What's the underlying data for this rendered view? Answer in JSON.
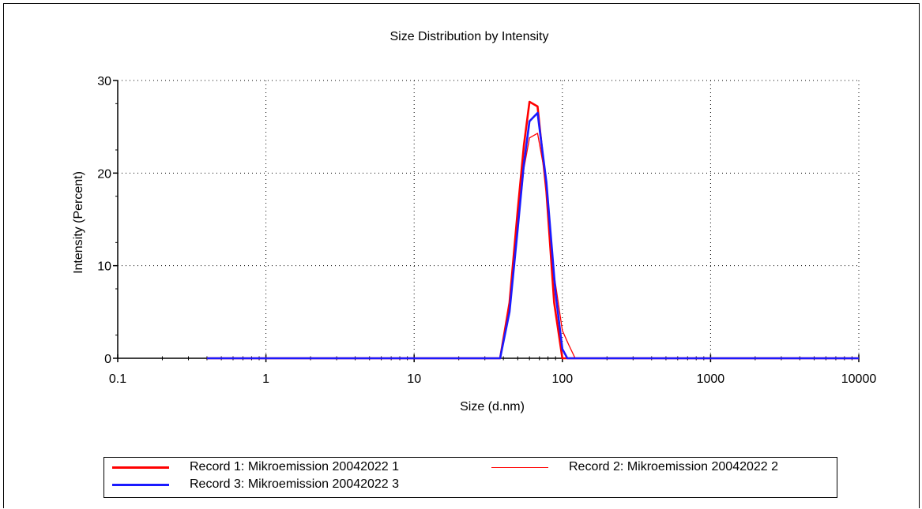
{
  "chart_data": {
    "type": "line",
    "title": "Size Distribution by Intensity",
    "xlabel": "Size (d.nm)",
    "ylabel": "Intensity (Percent)",
    "x_scale": "log",
    "xlim": [
      0.1,
      10000
    ],
    "ylim": [
      0,
      30
    ],
    "x_ticks": [
      "0.1",
      "1",
      "10",
      "100",
      "1000",
      "10000"
    ],
    "y_ticks": [
      "0",
      "10",
      "20",
      "30"
    ],
    "grid": true,
    "legend_position": "bottom",
    "series": [
      {
        "name": "Record 1: Mikroemission 20042022 1",
        "color": "#ff0000",
        "line_style": "thick",
        "points": [
          [
            0.4,
            0
          ],
          [
            38,
            0
          ],
          [
            44,
            6
          ],
          [
            50,
            16
          ],
          [
            55,
            23
          ],
          [
            60,
            27.7
          ],
          [
            68,
            27.2
          ],
          [
            78,
            18
          ],
          [
            88,
            6
          ],
          [
            100,
            0
          ],
          [
            10000,
            0
          ]
        ]
      },
      {
        "name": "Record 2: Mikroemission 20042022 2",
        "color": "#ff0000",
        "line_style": "thin",
        "points": [
          [
            0.4,
            0
          ],
          [
            38,
            0
          ],
          [
            44,
            5.5
          ],
          [
            50,
            14
          ],
          [
            55,
            20.5
          ],
          [
            60,
            23.8
          ],
          [
            68,
            24.3
          ],
          [
            78,
            19
          ],
          [
            88,
            9
          ],
          [
            100,
            3
          ],
          [
            110,
            1.5
          ],
          [
            122,
            0
          ],
          [
            10000,
            0
          ]
        ]
      },
      {
        "name": "Record 3: Mikroemission 20042022 3",
        "color": "#1a1aff",
        "line_style": "thick",
        "points": [
          [
            0.4,
            0
          ],
          [
            38,
            0
          ],
          [
            44,
            5
          ],
          [
            50,
            14
          ],
          [
            55,
            21
          ],
          [
            60,
            25.6
          ],
          [
            68,
            26.5
          ],
          [
            78,
            19
          ],
          [
            90,
            7
          ],
          [
            100,
            1
          ],
          [
            108,
            0
          ],
          [
            10000,
            0
          ]
        ]
      }
    ]
  }
}
